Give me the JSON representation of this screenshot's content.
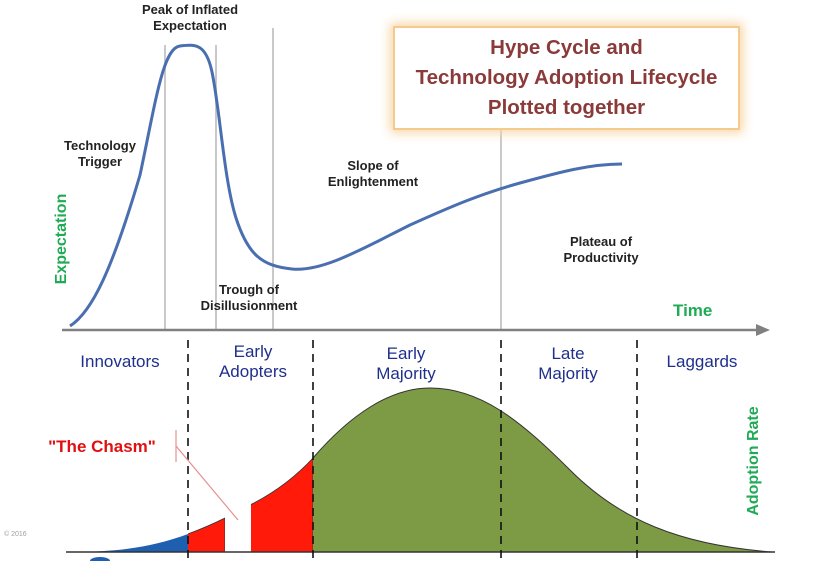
{
  "title": {
    "lines": [
      "Hype Cycle and",
      "Technology Adoption Lifecycle",
      "Plotted together"
    ],
    "color": "#8b3a3a",
    "border_color": "#f6c98c"
  },
  "hype_labels": {
    "peak": "Peak of Inflated Expectation",
    "trigger": "Technology Trigger",
    "slope": "Slope of Enlightenment",
    "trough": "Trough of Disillusionment",
    "plateau": "Plateau of Productivity"
  },
  "axes": {
    "expectation": "Expectation",
    "time": "Time",
    "adoption_rate": "Adoption Rate",
    "label_color": "#1faa55"
  },
  "segments": [
    "Innovators",
    "Early Adopters",
    "Early Majority",
    "Late Majority",
    "Laggards"
  ],
  "segment_color": "#1f2f8c",
  "chasm": {
    "label": "\"The Chasm\"",
    "color": "#e01010"
  },
  "copyright": "© 2016",
  "colors": {
    "curve": "#4a6fb0",
    "innovators_fill": "#1f5fb0",
    "adopters_fill": "#ff1a0a",
    "majority_fill": "#7d9a45",
    "guide_lines": "#c9c9c9",
    "axis": "#808080"
  },
  "chart_data": {
    "type": "line",
    "series": [
      {
        "name": "",
        "description_points": [
          "Technology Trigger",
          "Peak of Inflated Expectation",
          "Trough of Disillusionment",
          "Slope of Enlightenment",
          "Plateau of Productivity"
        ]
      }
    ]
  }
}
